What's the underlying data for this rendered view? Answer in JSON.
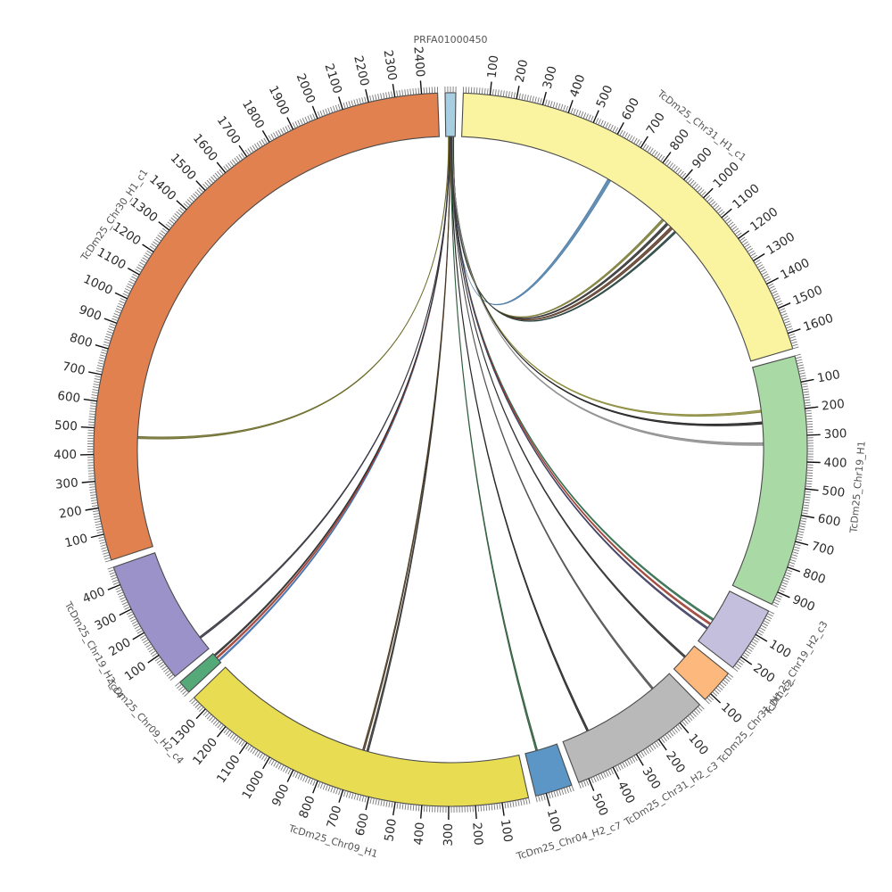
{
  "figure": {
    "kind": "circos-synteny-plot",
    "background": "#ffffff",
    "reference_segment": "PRFA01000450"
  },
  "chart_data": {
    "type": "circos",
    "title": "",
    "tick_minor_interval": 10,
    "tick_major_interval": 100,
    "gap_degrees": 1.2,
    "segments": [
      {
        "id": "PRFA01000450",
        "label": "PRFA01000450",
        "color": "#a8cee2",
        "length": 40
      },
      {
        "id": "TcDm25_Chr31_H1_c1",
        "label": "TcDm25_Chr31_H1_c1",
        "color": "#faf4a0",
        "length": 1660
      },
      {
        "id": "TcDm25_Chr19_H1",
        "label": "TcDm25_Chr19_H1",
        "color": "#a9d9a4",
        "length": 950
      },
      {
        "id": "TcDm25_Chr19_H2_c3",
        "label": "TcDm25_Chr19_H2_c3",
        "color": "#c3bfdc",
        "length": 250
      },
      {
        "id": "TcDm25_Chr31_H1_c2",
        "label": "TcDm25_Chr31_H1_c2",
        "color": "#fdb97d",
        "length": 130
      },
      {
        "id": "TcDm25_Chr31_H2_c3",
        "label": "TcDm25_Chr31_H2_c3",
        "color": "#b9b9b9",
        "length": 540
      },
      {
        "id": "TcDm25_Chr04_H2_c7",
        "label": "TcDm25_Chr04_H2_c7",
        "color": "#5b96c6",
        "length": 140
      },
      {
        "id": "TcDm25_Chr09_H1",
        "label": "TcDm25_Chr09_H1",
        "color": "#e7dc52",
        "length": 1360
      },
      {
        "id": "TcDm25_Chr09_H2_c4",
        "label": "TcDm25_Chr09_H2_c4",
        "color": "#55a877",
        "length": 50
      },
      {
        "id": "TcDm25_Chr19_H2_c4",
        "label": "TcDm25_Chr19_H2_c4",
        "color": "#9a92c8",
        "length": 470
      },
      {
        "id": "TcDm25_Chr30_H1_c1",
        "label": "TcDm25_Chr30_H1_c1",
        "color": "#e0814f",
        "length": 2460
      }
    ],
    "links_source": "PRFA01000450",
    "links": [
      {
        "target": "TcDm25_Chr31_H1_c1",
        "pos": 660,
        "width": 14,
        "color": "#4a7ba6"
      },
      {
        "target": "TcDm25_Chr31_H1_c1",
        "pos": 945,
        "width": 10,
        "color": "#7a7a35"
      },
      {
        "target": "TcDm25_Chr31_H1_c1",
        "pos": 970,
        "width": 10,
        "color": "#303030"
      },
      {
        "target": "TcDm25_Chr31_H1_c1",
        "pos": 995,
        "width": 12,
        "color": "#5d3b28"
      },
      {
        "target": "TcDm25_Chr31_H1_c1",
        "pos": 1018,
        "width": 8,
        "color": "#23403a"
      },
      {
        "target": "TcDm25_Chr19_H1",
        "pos": 190,
        "width": 10,
        "color": "#8a8a3a"
      },
      {
        "target": "TcDm25_Chr19_H1",
        "pos": 240,
        "width": 10,
        "color": "#1f1f1f"
      },
      {
        "target": "TcDm25_Chr19_H1",
        "pos": 330,
        "width": 12,
        "color": "#8c8c8c"
      },
      {
        "target": "TcDm25_Chr19_H2_c3",
        "pos": 140,
        "width": 8,
        "color": "#2f6b4a"
      },
      {
        "target": "TcDm25_Chr19_H2_c3",
        "pos": 162,
        "width": 8,
        "color": "#9c3b2f"
      },
      {
        "target": "TcDm25_Chr19_H2_c3",
        "pos": 184,
        "width": 8,
        "color": "#3c3c5e"
      },
      {
        "target": "TcDm25_Chr31_H1_c2",
        "pos": 60,
        "width": 8,
        "color": "#2f2f2f"
      },
      {
        "target": "TcDm25_Chr31_H2_c3",
        "pos": 95,
        "width": 8,
        "color": "#4f4f4f"
      },
      {
        "target": "TcDm25_Chr31_H2_c3",
        "pos": 425,
        "width": 8,
        "color": "#262626"
      },
      {
        "target": "TcDm25_Chr04_H2_c7",
        "pos": 90,
        "width": 8,
        "color": "#2e5b3a"
      },
      {
        "target": "TcDm25_Chr09_H1",
        "pos": 650,
        "width": 8,
        "color": "#333333"
      },
      {
        "target": "TcDm25_Chr09_H1",
        "pos": 668,
        "width": 8,
        "color": "#4b3a22"
      },
      {
        "target": "TcDm25_Chr09_H2_c4",
        "pos": 12,
        "width": 7,
        "color": "#3f6fae"
      },
      {
        "target": "TcDm25_Chr09_H2_c4",
        "pos": 26,
        "width": 7,
        "color": "#a03b2e"
      },
      {
        "target": "TcDm25_Chr09_H2_c4",
        "pos": 40,
        "width": 7,
        "color": "#2b2b2b"
      },
      {
        "target": "TcDm25_Chr19_H2_c4",
        "pos": 60,
        "width": 8,
        "color": "#35353f"
      },
      {
        "target": "TcDm25_Chr30_H1_c1",
        "pos": 470,
        "width": 10,
        "color": "#6b6b2a"
      }
    ],
    "style": {
      "band_outline": "#4a4a4a",
      "minor_tick_color": "#777777",
      "major_tick_color": "#111111",
      "tick_label_color": "#2b2b2b",
      "segment_label_color": "#555555"
    }
  }
}
